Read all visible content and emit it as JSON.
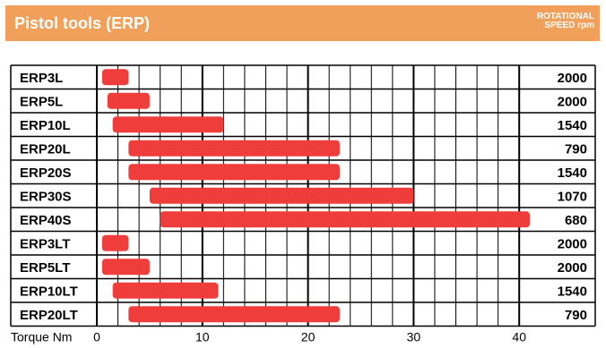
{
  "header": {
    "title": "Pistol tools (ERP)",
    "speed_label_line1": "ROTATIONAL",
    "speed_label_line2": "SPEED rpm"
  },
  "colors": {
    "header_bg": "#f0a05a",
    "bar": "#ee3d3a",
    "grid": "#000000"
  },
  "chart_data": {
    "type": "bar",
    "orientation": "horizontal-range",
    "title": "Pistol tools (ERP)",
    "xlabel": "Torque Nm",
    "xlim": [
      -2,
      45
    ],
    "xticks": [
      0,
      10,
      20,
      30,
      40
    ],
    "grid": true,
    "right_column_label": "ROTATIONAL SPEED rpm",
    "categories": [
      "ERP3L",
      "ERP5L",
      "ERP10L",
      "ERP20L",
      "ERP20S",
      "ERP30S",
      "ERP40S",
      "ERP3LT",
      "ERP5LT",
      "ERP10LT",
      "ERP20LT"
    ],
    "torque_min": [
      0.5,
      1,
      1.5,
      3,
      3,
      5,
      6,
      0.5,
      0.5,
      1.5,
      3
    ],
    "torque_max": [
      3,
      5,
      12,
      23,
      23,
      30,
      41,
      3,
      5,
      11.5,
      23
    ],
    "speed_rpm": [
      2000,
      2000,
      1540,
      790,
      1540,
      1070,
      680,
      2000,
      2000,
      1540,
      790
    ]
  }
}
